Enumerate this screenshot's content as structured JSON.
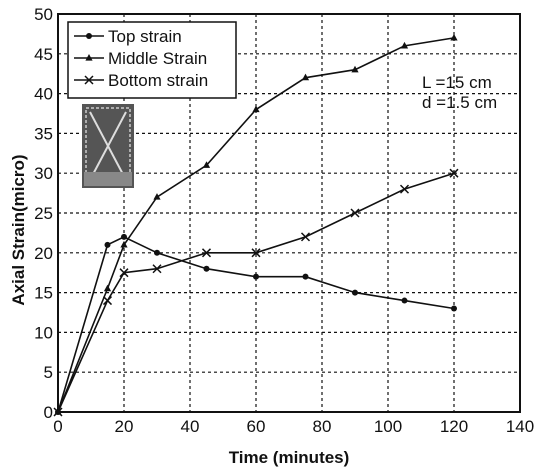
{
  "chart_data": {
    "type": "line",
    "xlabel": "Time (minutes)",
    "ylabel": "Axial Strain(micro)",
    "xlim": [
      0,
      140
    ],
    "ylim": [
      0,
      50
    ],
    "xticks": [
      0,
      20,
      40,
      60,
      80,
      100,
      120,
      140
    ],
    "yticks": [
      0,
      5,
      10,
      15,
      20,
      25,
      30,
      35,
      40,
      45,
      50
    ],
    "grid": true,
    "legend_position": "top-left",
    "annotation": [
      "L =15 cm",
      "d =1.5 cm"
    ],
    "series": [
      {
        "name": "Top strain",
        "marker": "dot",
        "x": [
          0,
          15,
          20,
          30,
          45,
          60,
          75,
          90,
          105,
          120
        ],
        "y": [
          0,
          21,
          22,
          20,
          18,
          17,
          17,
          15,
          14,
          13
        ]
      },
      {
        "name": "Middle Strain",
        "marker": "triangle",
        "x": [
          0,
          15,
          20,
          30,
          45,
          60,
          75,
          90,
          105,
          120
        ],
        "y": [
          0,
          15.5,
          21,
          27,
          31,
          38,
          42,
          43,
          46,
          47
        ]
      },
      {
        "name": "Bottom strain",
        "marker": "x",
        "x": [
          0,
          15,
          20,
          30,
          45,
          60,
          75,
          90,
          105,
          120
        ],
        "y": [
          0,
          14,
          17.5,
          18,
          20,
          20,
          22,
          25,
          28,
          30
        ]
      }
    ]
  }
}
